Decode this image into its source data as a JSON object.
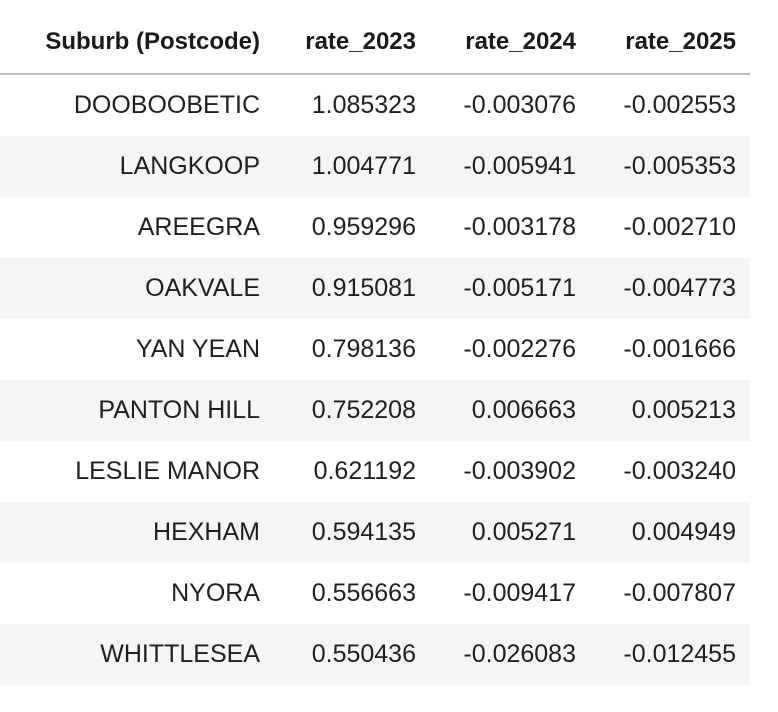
{
  "table": {
    "columns": [
      "Suburb (Postcode)",
      "rate_2023",
      "rate_2024",
      "rate_2025"
    ],
    "rows": [
      [
        "DOOBOOBETIC",
        "1.085323",
        "-0.003076",
        "-0.002553"
      ],
      [
        "LANGKOOP",
        "1.004771",
        "-0.005941",
        "-0.005353"
      ],
      [
        "AREEGRA",
        "0.959296",
        "-0.003178",
        "-0.002710"
      ],
      [
        "OAKVALE",
        "0.915081",
        "-0.005171",
        "-0.004773"
      ],
      [
        "YAN YEAN",
        "0.798136",
        "-0.002276",
        "-0.001666"
      ],
      [
        "PANTON HILL",
        "0.752208",
        "0.006663",
        "0.005213"
      ],
      [
        "LESLIE MANOR",
        "0.621192",
        "-0.003902",
        "-0.003240"
      ],
      [
        "HEXHAM",
        "0.594135",
        "0.005271",
        "0.004949"
      ],
      [
        "NYORA",
        "0.556663",
        "-0.009417",
        "-0.007807"
      ],
      [
        "WHITTLESEA",
        "0.550436",
        "-0.026083",
        "-0.012455"
      ]
    ]
  }
}
